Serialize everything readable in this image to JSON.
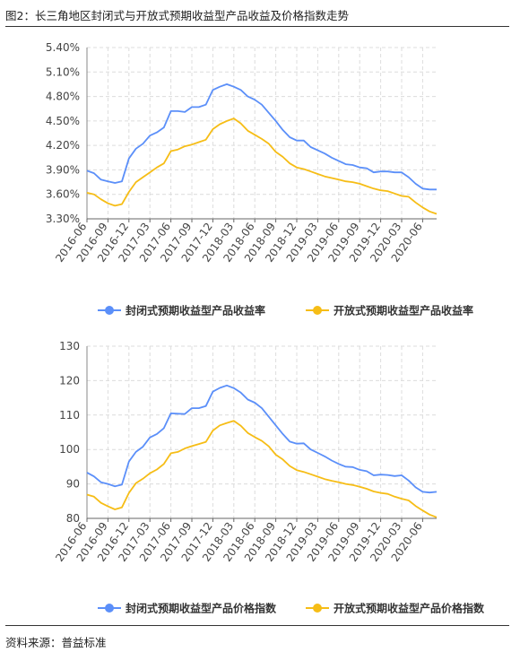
{
  "figure": {
    "title": "图2：长三角地区封闭式与开放式预期收益型产品收益及价格指数走势",
    "source": "资料来源：普益标准"
  },
  "chart_data": [
    {
      "type": "line",
      "title": "",
      "xlabel": "",
      "ylabel": "",
      "ylim": [
        3.3,
        5.4
      ],
      "yticks": [
        3.3,
        3.6,
        3.9,
        4.2,
        4.5,
        4.8,
        5.1,
        5.4
      ],
      "ytick_format": "percent2",
      "grid": true,
      "legend_position": "bottom-center",
      "x_tick_labels": [
        "2016-06",
        "2016-09",
        "2016-12",
        "2017-03",
        "2017-06",
        "2017-09",
        "2017-12",
        "2018-03",
        "2018-06",
        "2018-09",
        "2018-12",
        "2019-03",
        "2019-06",
        "2019-09",
        "2019-12",
        "2020-03",
        "2020-06"
      ],
      "x": [
        "2016-06",
        "2016-07",
        "2016-08",
        "2016-09",
        "2016-10",
        "2016-11",
        "2016-12",
        "2017-01",
        "2017-02",
        "2017-03",
        "2017-04",
        "2017-05",
        "2017-06",
        "2017-07",
        "2017-08",
        "2017-09",
        "2017-10",
        "2017-11",
        "2017-12",
        "2018-01",
        "2018-02",
        "2018-03",
        "2018-04",
        "2018-05",
        "2018-06",
        "2018-07",
        "2018-08",
        "2018-09",
        "2018-10",
        "2018-11",
        "2018-12",
        "2019-01",
        "2019-02",
        "2019-03",
        "2019-04",
        "2019-05",
        "2019-06",
        "2019-07",
        "2019-08",
        "2019-09",
        "2019-10",
        "2019-11",
        "2019-12",
        "2020-01",
        "2020-02",
        "2020-03",
        "2020-04",
        "2020-05",
        "2020-06",
        "2020-07",
        "2020-08"
      ],
      "series": [
        {
          "name": "封闭式预期收益型产品收益率",
          "color": "#5B8FF9",
          "values": [
            3.89,
            3.86,
            3.78,
            3.76,
            3.74,
            3.76,
            4.04,
            4.16,
            4.22,
            4.32,
            4.36,
            4.42,
            4.62,
            4.62,
            4.61,
            4.67,
            4.67,
            4.7,
            4.88,
            4.92,
            4.95,
            4.92,
            4.88,
            4.8,
            4.76,
            4.7,
            4.6,
            4.5,
            4.39,
            4.3,
            4.26,
            4.26,
            4.18,
            4.14,
            4.1,
            4.05,
            4.01,
            3.97,
            3.96,
            3.93,
            3.92,
            3.87,
            3.88,
            3.88,
            3.87,
            3.87,
            3.81,
            3.73,
            3.67,
            3.66,
            3.66
          ]
        },
        {
          "name": "开放式预期收益型产品收益率",
          "color": "#F6BD16",
          "values": [
            3.62,
            3.6,
            3.54,
            3.49,
            3.46,
            3.48,
            3.63,
            3.75,
            3.81,
            3.87,
            3.93,
            3.98,
            4.13,
            4.15,
            4.19,
            4.21,
            4.24,
            4.27,
            4.4,
            4.46,
            4.5,
            4.53,
            4.47,
            4.38,
            4.33,
            4.28,
            4.22,
            4.12,
            4.06,
            3.98,
            3.93,
            3.91,
            3.88,
            3.85,
            3.82,
            3.8,
            3.78,
            3.76,
            3.75,
            3.73,
            3.7,
            3.67,
            3.65,
            3.64,
            3.61,
            3.58,
            3.57,
            3.5,
            3.44,
            3.39,
            3.36
          ]
        }
      ]
    },
    {
      "type": "line",
      "title": "",
      "xlabel": "",
      "ylabel": "",
      "ylim": [
        80,
        130
      ],
      "yticks": [
        80,
        90,
        100,
        110,
        120,
        130
      ],
      "ytick_format": "integer",
      "grid": true,
      "legend_position": "bottom-center",
      "x_tick_labels": [
        "2016-06",
        "2016-09",
        "2016-12",
        "2017-03",
        "2017-06",
        "2017-09",
        "2017-12",
        "2018-03",
        "2018-06",
        "2018-09",
        "2018-12",
        "2019-03",
        "2019-06",
        "2019-09",
        "2019-12",
        "2020-03",
        "2020-06"
      ],
      "x": [
        "2016-06",
        "2016-07",
        "2016-08",
        "2016-09",
        "2016-10",
        "2016-11",
        "2016-12",
        "2017-01",
        "2017-02",
        "2017-03",
        "2017-04",
        "2017-05",
        "2017-06",
        "2017-07",
        "2017-08",
        "2017-09",
        "2017-10",
        "2017-11",
        "2017-12",
        "2018-01",
        "2018-02",
        "2018-03",
        "2018-04",
        "2018-05",
        "2018-06",
        "2018-07",
        "2018-08",
        "2018-09",
        "2018-10",
        "2018-11",
        "2018-12",
        "2019-01",
        "2019-02",
        "2019-03",
        "2019-04",
        "2019-05",
        "2019-06",
        "2019-07",
        "2019-08",
        "2019-09",
        "2019-10",
        "2019-11",
        "2019-12",
        "2020-01",
        "2020-02",
        "2020-03",
        "2020-04",
        "2020-05",
        "2020-06",
        "2020-07",
        "2020-08"
      ],
      "series": [
        {
          "name": "封闭式预期收益型产品价格指数",
          "color": "#5B8FF9",
          "values": [
            93.3,
            92.2,
            90.5,
            90.0,
            89.3,
            89.8,
            96.5,
            99.3,
            100.8,
            103.5,
            104.5,
            106.2,
            110.5,
            110.4,
            110.3,
            112.0,
            112.0,
            112.6,
            116.8,
            117.9,
            118.6,
            117.8,
            116.5,
            114.5,
            113.6,
            112.0,
            109.5,
            107.0,
            104.5,
            102.3,
            101.7,
            101.8,
            100.0,
            99.0,
            98.0,
            96.8,
            95.8,
            95.0,
            94.9,
            94.1,
            93.7,
            92.5,
            92.7,
            92.6,
            92.3,
            92.5,
            91.0,
            89.0,
            87.7,
            87.5,
            87.7
          ]
        },
        {
          "name": "开放式预期收益型产品价格指数",
          "color": "#F6BD16",
          "values": [
            86.9,
            86.3,
            84.5,
            83.5,
            82.6,
            83.2,
            87.4,
            90.2,
            91.5,
            93.1,
            94.2,
            95.8,
            98.9,
            99.3,
            100.3,
            101.0,
            101.6,
            102.2,
            105.5,
            107.0,
            107.7,
            108.3,
            106.9,
            104.8,
            103.6,
            102.5,
            100.9,
            98.5,
            97.1,
            95.2,
            94.0,
            93.5,
            92.8,
            92.1,
            91.4,
            90.9,
            90.5,
            90.0,
            89.7,
            89.2,
            88.6,
            87.8,
            87.4,
            87.1,
            86.3,
            85.7,
            85.2,
            83.6,
            82.3,
            81.1,
            80.3
          ]
        }
      ]
    }
  ]
}
